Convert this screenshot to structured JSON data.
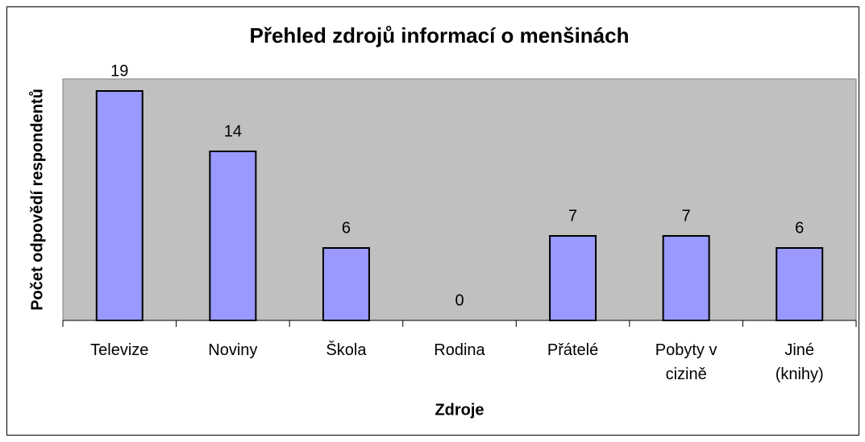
{
  "chart_data": {
    "type": "bar",
    "title": "Přehled zdrojů informací o menšinách",
    "ylabel": "Počet odpovědí respondentů",
    "xlabel": "Zdroje",
    "categories": [
      "Televize",
      "Noviny",
      "Škola",
      "Rodina",
      "Přátelé",
      "Pobyty v cizině",
      "Jiné (knihy)"
    ],
    "values": [
      19,
      14,
      6,
      0,
      7,
      7,
      6
    ],
    "color": "#9999ff",
    "ylim": [
      0,
      20
    ]
  }
}
